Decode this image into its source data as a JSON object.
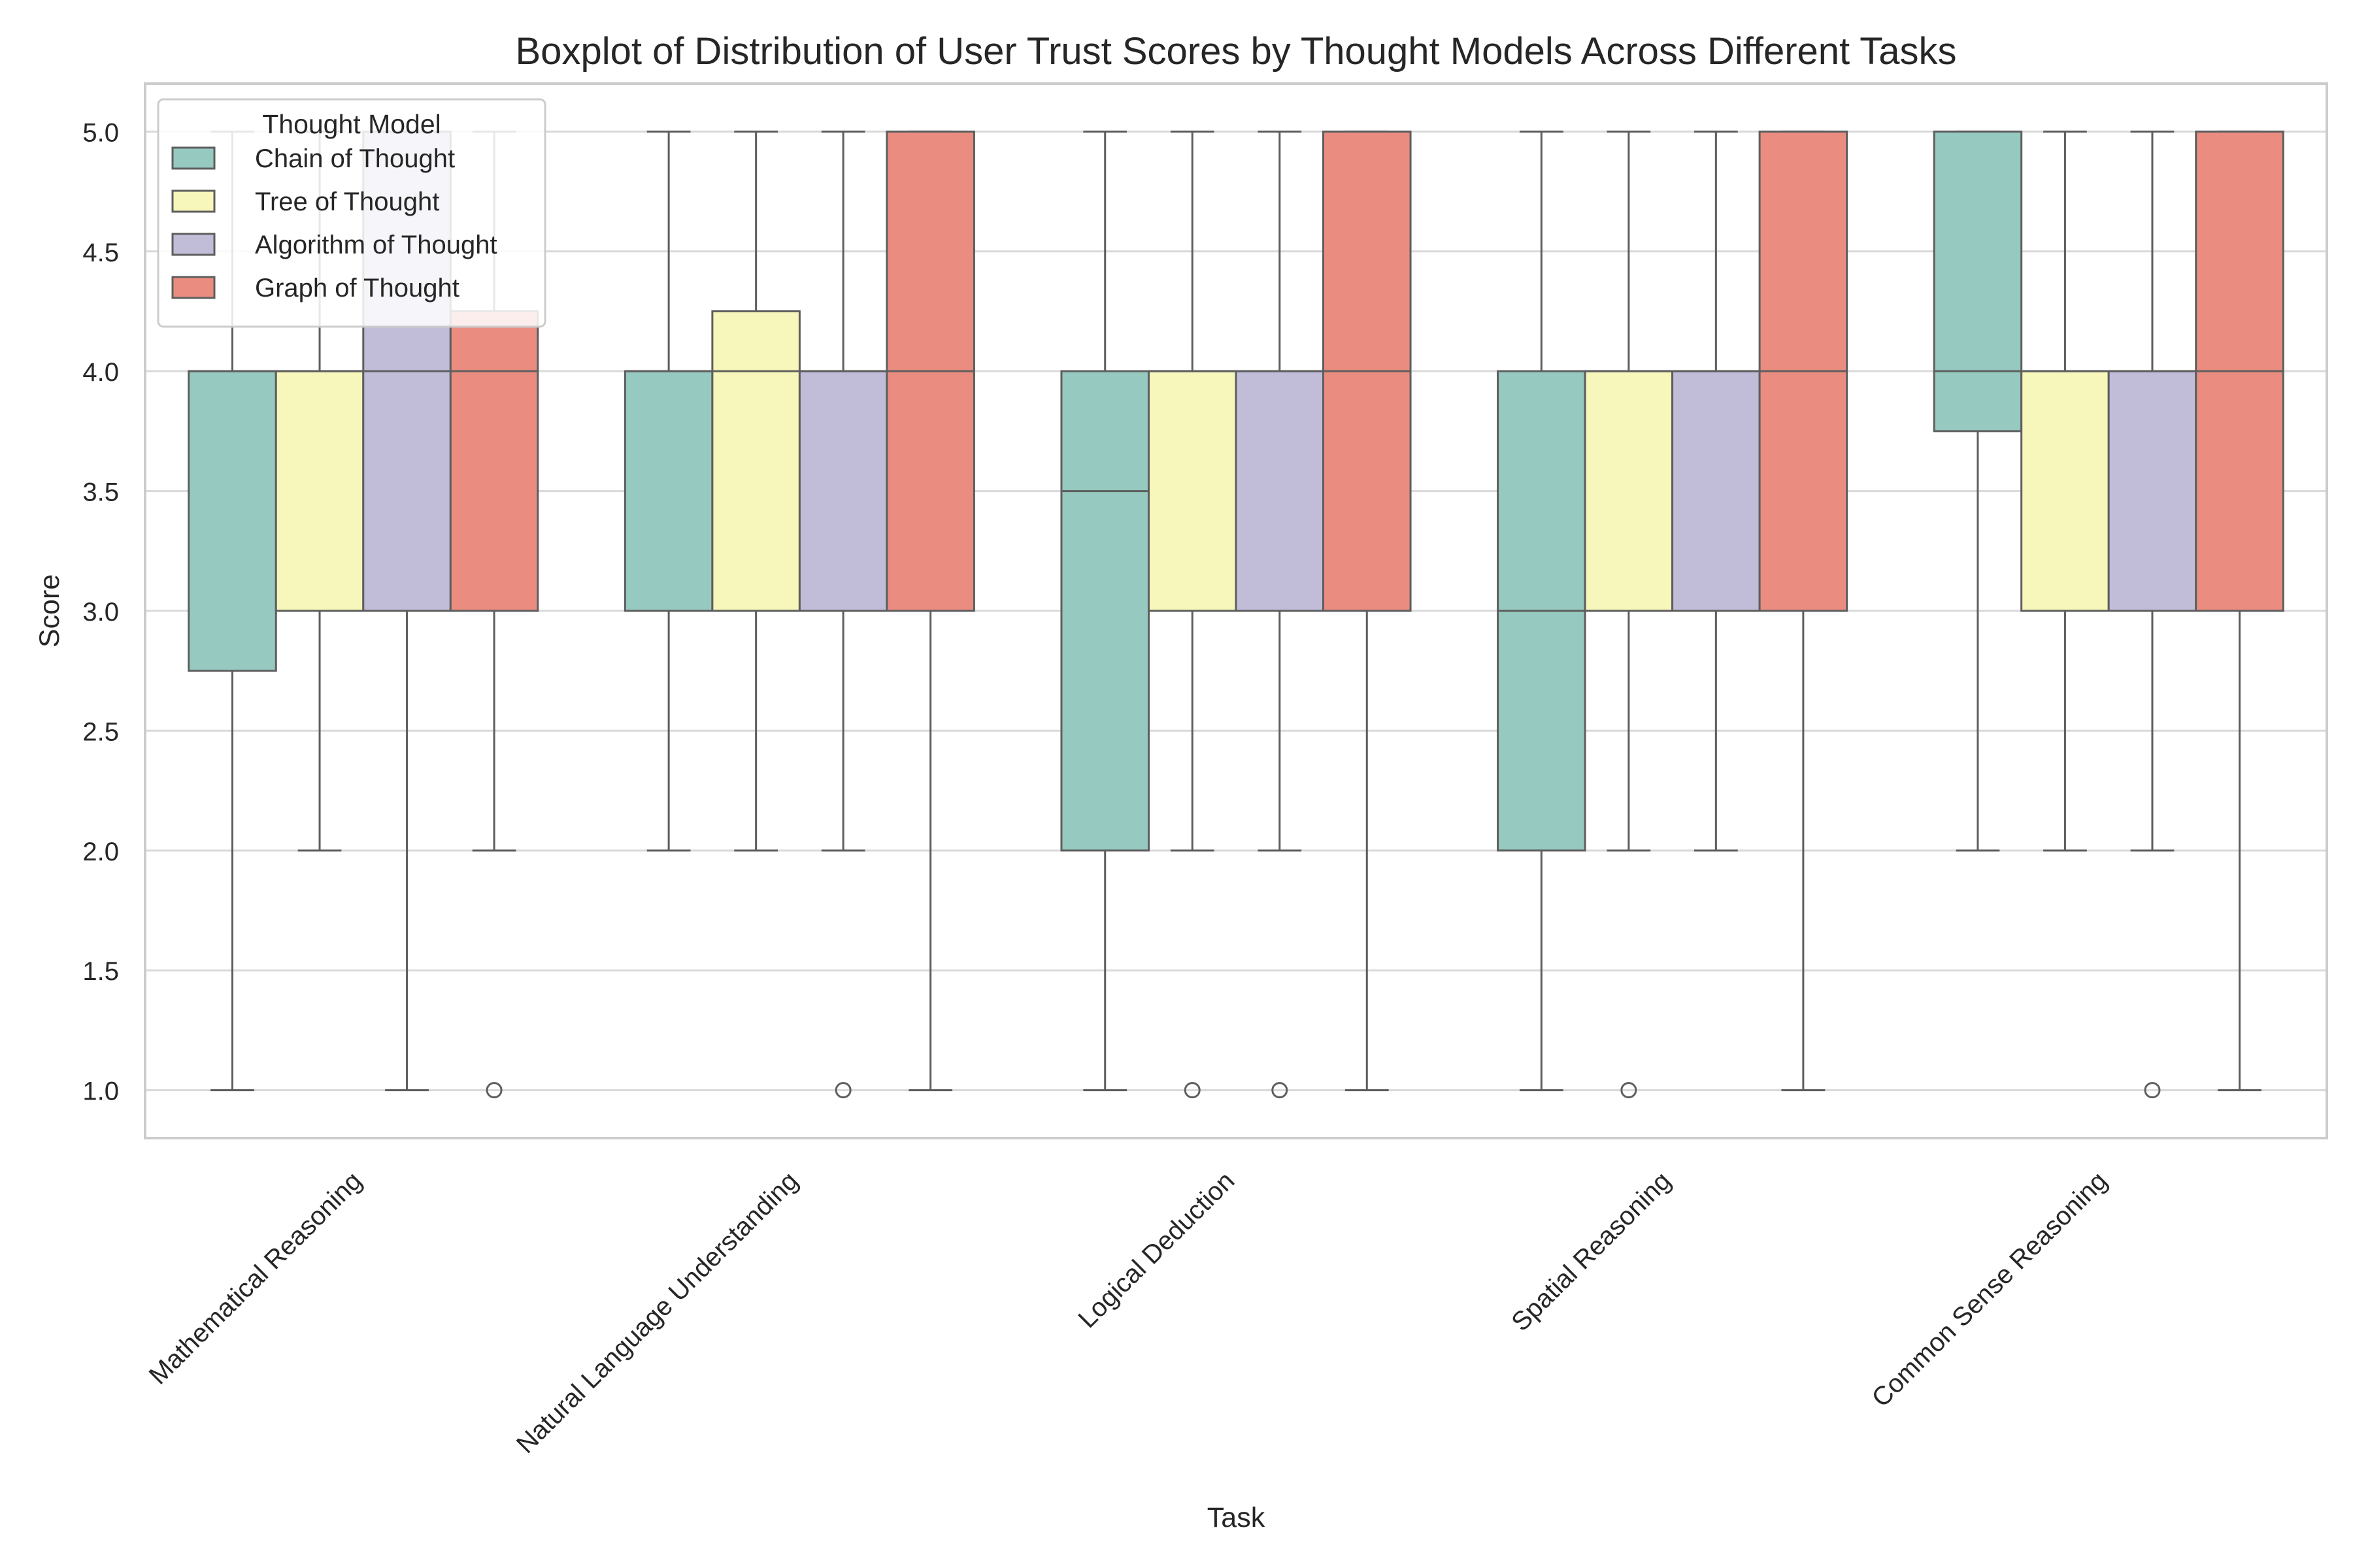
{
  "chart_data": {
    "type": "boxplot",
    "title": "Boxplot of Distribution of User Trust Scores by Thought Models Across Different Tasks",
    "xlabel": "Task",
    "ylabel": "Score",
    "ylim": [
      0.8,
      5.2
    ],
    "yticks": [
      1.0,
      1.5,
      2.0,
      2.5,
      3.0,
      3.5,
      4.0,
      4.5,
      5.0
    ],
    "grid": "horizontal",
    "legend": {
      "title": "Thought Model",
      "placement": "top-left"
    },
    "categories": [
      "Mathematical Reasoning",
      "Natural Language Understanding",
      "Logical Deduction",
      "Spatial Reasoning",
      "Common Sense Reasoning"
    ],
    "series": [
      {
        "name": "Chain of Thought",
        "color": "#96c9c0",
        "boxes": [
          {
            "whislo": 1,
            "q1": 2.75,
            "med": 4,
            "q3": 4,
            "whishi": 5,
            "fliers": []
          },
          {
            "whislo": 2,
            "q1": 3,
            "med": 4,
            "q3": 4,
            "whishi": 5,
            "fliers": []
          },
          {
            "whislo": 1,
            "q1": 2,
            "med": 3.5,
            "q3": 4,
            "whishi": 5,
            "fliers": []
          },
          {
            "whislo": 1,
            "q1": 2,
            "med": 3,
            "q3": 4,
            "whishi": 5,
            "fliers": []
          },
          {
            "whislo": 2,
            "q1": 3.75,
            "med": 4,
            "q3": 5,
            "whishi": 5,
            "fliers": []
          }
        ]
      },
      {
        "name": "Tree of Thought",
        "color": "#f7f6bb",
        "boxes": [
          {
            "whislo": 2,
            "q1": 3,
            "med": 4,
            "q3": 4,
            "whishi": 5,
            "fliers": []
          },
          {
            "whislo": 2,
            "q1": 3,
            "med": 4,
            "q3": 4.25,
            "whishi": 5,
            "fliers": []
          },
          {
            "whislo": 2,
            "q1": 3,
            "med": 4,
            "q3": 4,
            "whishi": 5,
            "fliers": [
              1
            ]
          },
          {
            "whislo": 2,
            "q1": 3,
            "med": 4,
            "q3": 4,
            "whishi": 5,
            "fliers": [
              1
            ]
          },
          {
            "whislo": 2,
            "q1": 3,
            "med": 4,
            "q3": 4,
            "whishi": 5,
            "fliers": []
          }
        ]
      },
      {
        "name": "Algorithm of Thought",
        "color": "#c1bdd8",
        "boxes": [
          {
            "whislo": 1,
            "q1": 3,
            "med": 4,
            "q3": 5,
            "whishi": 5,
            "fliers": []
          },
          {
            "whislo": 2,
            "q1": 3,
            "med": 4,
            "q3": 4,
            "whishi": 5,
            "fliers": [
              1
            ]
          },
          {
            "whislo": 2,
            "q1": 3,
            "med": 4,
            "q3": 4,
            "whishi": 5,
            "fliers": [
              1
            ]
          },
          {
            "whislo": 2,
            "q1": 3,
            "med": 4,
            "q3": 4,
            "whishi": 5,
            "fliers": []
          },
          {
            "whislo": 2,
            "q1": 3,
            "med": 4,
            "q3": 4,
            "whishi": 5,
            "fliers": [
              1
            ]
          }
        ]
      },
      {
        "name": "Graph of Thought",
        "color": "#ea8d80",
        "boxes": [
          {
            "whislo": 2,
            "q1": 3,
            "med": 4,
            "q3": 4.25,
            "whishi": 5,
            "fliers": [
              1
            ]
          },
          {
            "whislo": 1,
            "q1": 3,
            "med": 4,
            "q3": 5,
            "whishi": 5,
            "fliers": []
          },
          {
            "whislo": 1,
            "q1": 3,
            "med": 4,
            "q3": 5,
            "whishi": 5,
            "fliers": []
          },
          {
            "whislo": 1,
            "q1": 3,
            "med": 4,
            "q3": 5,
            "whishi": 5,
            "fliers": []
          },
          {
            "whislo": 1,
            "q1": 3,
            "med": 4,
            "q3": 5,
            "whishi": 5,
            "fliers": []
          }
        ]
      }
    ]
  }
}
